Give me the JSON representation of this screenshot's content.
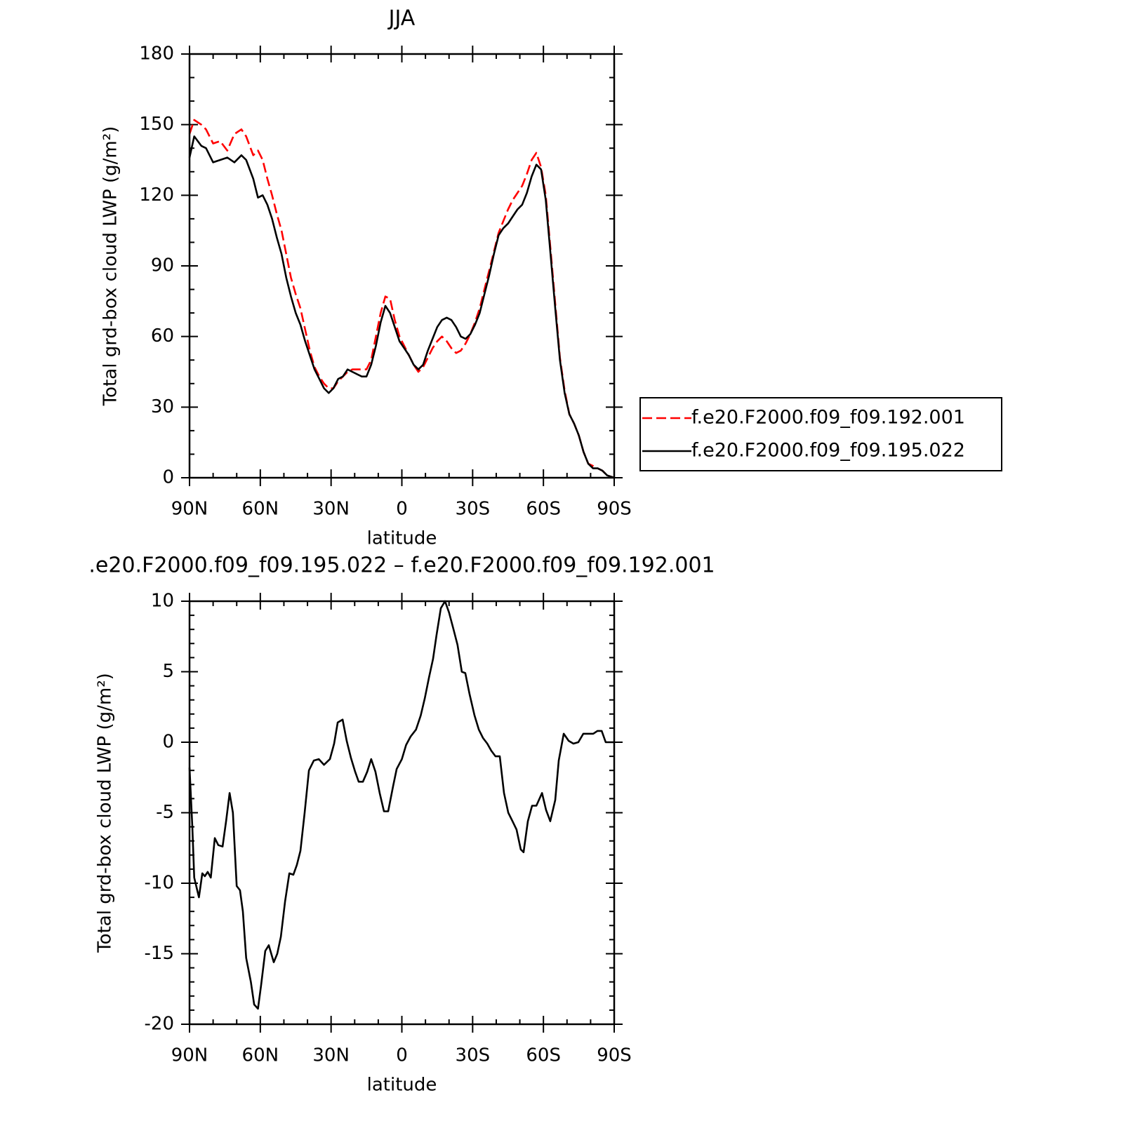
{
  "chart_data": [
    {
      "type": "line",
      "title": "JJA",
      "xlabel": "latitude",
      "ylabel": "Total grd-box cloud LWP (g/m²)",
      "xlim": [
        90,
        -90
      ],
      "ylim": [
        0,
        180
      ],
      "xticks": [
        {
          "value": 90,
          "label": "90N"
        },
        {
          "value": 60,
          "label": "60N"
        },
        {
          "value": 30,
          "label": "30N"
        },
        0,
        {
          "value": -30,
          "label": "30S"
        },
        {
          "value": -60,
          "label": "60S"
        },
        {
          "value": -90,
          "label": "90S"
        }
      ],
      "yticks": [
        0,
        30,
        60,
        90,
        120,
        150,
        180
      ],
      "xminorticks": [
        80,
        70,
        50,
        40,
        20,
        10,
        -10,
        -20,
        -40,
        -50,
        -70,
        -80
      ],
      "yminorticks": [
        10,
        20,
        40,
        50,
        70,
        80,
        100,
        110,
        130,
        140,
        160,
        170
      ],
      "legend": "right",
      "x": [
        90,
        88,
        85,
        83,
        80,
        77,
        74,
        71,
        68,
        66,
        63,
        61,
        59,
        57,
        55,
        53,
        51,
        49,
        47,
        45,
        43,
        41,
        39,
        37,
        35,
        33,
        31,
        29,
        27,
        25,
        23,
        21,
        19,
        17,
        15,
        13,
        11,
        9,
        7,
        5,
        3,
        1,
        -1,
        -3,
        -5,
        -7,
        -9,
        -11,
        -13,
        -15,
        -17,
        -19,
        -21,
        -23,
        -25,
        -27,
        -29,
        -31,
        -33,
        -35,
        -37,
        -39,
        -41,
        -43,
        -45,
        -47,
        -49,
        -51,
        -53,
        -55,
        -57,
        -59,
        -61,
        -63,
        -65,
        -67,
        -69,
        -71,
        -73,
        -75,
        -77,
        -79,
        -81,
        -83,
        -85,
        -87,
        -90
      ],
      "series": [
        {
          "name": "f.e20.F2000.f09_f09.192.001",
          "color": "#ff0000",
          "dash": true,
          "values": [
            146,
            152,
            150,
            148,
            142,
            143,
            139,
            146,
            148,
            145,
            137,
            139,
            135,
            127,
            120,
            112,
            105,
            95,
            85,
            78,
            72,
            63,
            54,
            47,
            43,
            40,
            38,
            38,
            41,
            43,
            45,
            46,
            46,
            46,
            46,
            50,
            60,
            70,
            77,
            76,
            67,
            60,
            56,
            52,
            48,
            45,
            47,
            51,
            55,
            58,
            60,
            58,
            55,
            53,
            54,
            57,
            61,
            66,
            72,
            80,
            88,
            96,
            104,
            109,
            114,
            118,
            121,
            124,
            129,
            135,
            138,
            132,
            120,
            97,
            74,
            51,
            37,
            27,
            23,
            18,
            11,
            6,
            5,
            4,
            3,
            1,
            0
          ]
        },
        {
          "name": "f.e20.F2000.f09_f09.195.022",
          "color": "#000000",
          "dash": false,
          "values": [
            136,
            145,
            141,
            140,
            134,
            135,
            136,
            134,
            137,
            135,
            127,
            119,
            120,
            116,
            110,
            102,
            95,
            85,
            77,
            70,
            65,
            58,
            52,
            46,
            42,
            38,
            36,
            38,
            42,
            43,
            46,
            45,
            44,
            43,
            43,
            48,
            56,
            66,
            73,
            70,
            64,
            58,
            55,
            52,
            48,
            46,
            48,
            54,
            59,
            64,
            67,
            68,
            67,
            64,
            60,
            59,
            61,
            65,
            70,
            78,
            86,
            95,
            103,
            106,
            108,
            111,
            114,
            116,
            121,
            128,
            133,
            131,
            118,
            95,
            72,
            50,
            36,
            27,
            23,
            18,
            11,
            6,
            4,
            4,
            3,
            1,
            0
          ]
        }
      ]
    },
    {
      "type": "line",
      "title": ".e20.F2000.f09_f09.195.022 – f.e20.F2000.f09_f09.192.001",
      "xlabel": "latitude",
      "ylabel": "Total grd-box cloud LWP (g/m²)",
      "xlim": [
        90,
        -90
      ],
      "ylim": [
        -20,
        10
      ],
      "xticks": [
        {
          "value": 90,
          "label": "90N"
        },
        {
          "value": 60,
          "label": "60N"
        },
        {
          "value": 30,
          "label": "30N"
        },
        0,
        {
          "value": -30,
          "label": "30S"
        },
        {
          "value": -60,
          "label": "60S"
        },
        {
          "value": -90,
          "label": "90S"
        }
      ],
      "yticks": [
        -20,
        -15,
        -10,
        -5,
        0,
        5,
        10
      ],
      "xminorticks": [
        80,
        70,
        50,
        40,
        20,
        10,
        -10,
        -20,
        -40,
        -50,
        -70,
        -80
      ],
      "yminorticks": [
        -19,
        -18,
        -17,
        -16,
        -14,
        -13,
        -12,
        -11,
        -9,
        -8,
        -7,
        -6,
        -4,
        -3,
        -2,
        -1,
        1,
        2,
        3,
        4,
        6,
        7,
        8,
        9
      ],
      "x": [
        90,
        88.8,
        88,
        86,
        84.6,
        83.5,
        82.3,
        81,
        79.3,
        77.8,
        76,
        74.5,
        73,
        71.6,
        70,
        68.6,
        67.4,
        66,
        64,
        62.6,
        61,
        59.7,
        57.9,
        56.4,
        54.3,
        52.8,
        51.3,
        49.5,
        47.7,
        46,
        44.5,
        43,
        41.2,
        39.4,
        37.3,
        35.2,
        33,
        30.5,
        28.7,
        27.2,
        25.1,
        23.4,
        21.6,
        19.8,
        18.3,
        16.5,
        14.7,
        13,
        11.2,
        9.4,
        7.6,
        5.8,
        3.7,
        2.2,
        0,
        -1.8,
        -3.7,
        -6,
        -8,
        -9.7,
        -11.5,
        -13.2,
        -14.7,
        -16.5,
        -18.3,
        -20,
        -21.9,
        -23.6,
        -25.4,
        -26.9,
        -28.7,
        -30.8,
        -32.6,
        -34.4,
        -36.2,
        -37.9,
        -39.7,
        -41.5,
        -43.3,
        -45.1,
        -46.9,
        -48.6,
        -50.4,
        -51.6,
        -53.4,
        -55.2,
        -57,
        -59.4,
        -61.1,
        -62.9,
        -65,
        -66.5,
        -68.6,
        -70.7,
        -72.7,
        -74.8,
        -76.9,
        -79,
        -81.1,
        -82.9,
        -84.7,
        -86.4,
        -88.5,
        -90
      ],
      "series": [
        {
          "color": "#000000",
          "dash": false,
          "values": [
            -1.8,
            -6,
            -9.6,
            -11,
            -9.3,
            -9.5,
            -9.2,
            -9.6,
            -6.8,
            -7.3,
            -7.4,
            -5.6,
            -3.6,
            -5,
            -10.2,
            -10.5,
            -12,
            -15.3,
            -17,
            -18.6,
            -18.9,
            -17.3,
            -14.8,
            -14.4,
            -15.6,
            -15,
            -13.8,
            -11.3,
            -9.3,
            -9.4,
            -8.7,
            -7.7,
            -5,
            -2,
            -1.3,
            -1.2,
            -1.6,
            -1.2,
            -0.1,
            1.4,
            1.6,
            0.1,
            -1.1,
            -2.1,
            -2.8,
            -2.8,
            -2.1,
            -1.2,
            -2.1,
            -3.6,
            -4.9,
            -4.9,
            -3.1,
            -1.9,
            -1.2,
            -0.2,
            0.4,
            0.9,
            1.9,
            3.1,
            4.6,
            5.9,
            7.6,
            9.5,
            10,
            9.2,
            8,
            6.9,
            5,
            4.9,
            3.4,
            1.9,
            0.9,
            0.3,
            -0.1,
            -0.6,
            -1,
            -1,
            -3.6,
            -5,
            -5.6,
            -6.2,
            -7.6,
            -7.8,
            -5.6,
            -4.5,
            -4.5,
            -3.6,
            -4.8,
            -5.6,
            -4.1,
            -1.3,
            0.6,
            0.1,
            -0.1,
            0,
            0.6,
            0.6,
            0.6,
            0.8,
            0.8,
            0,
            0,
            0
          ]
        }
      ]
    }
  ]
}
